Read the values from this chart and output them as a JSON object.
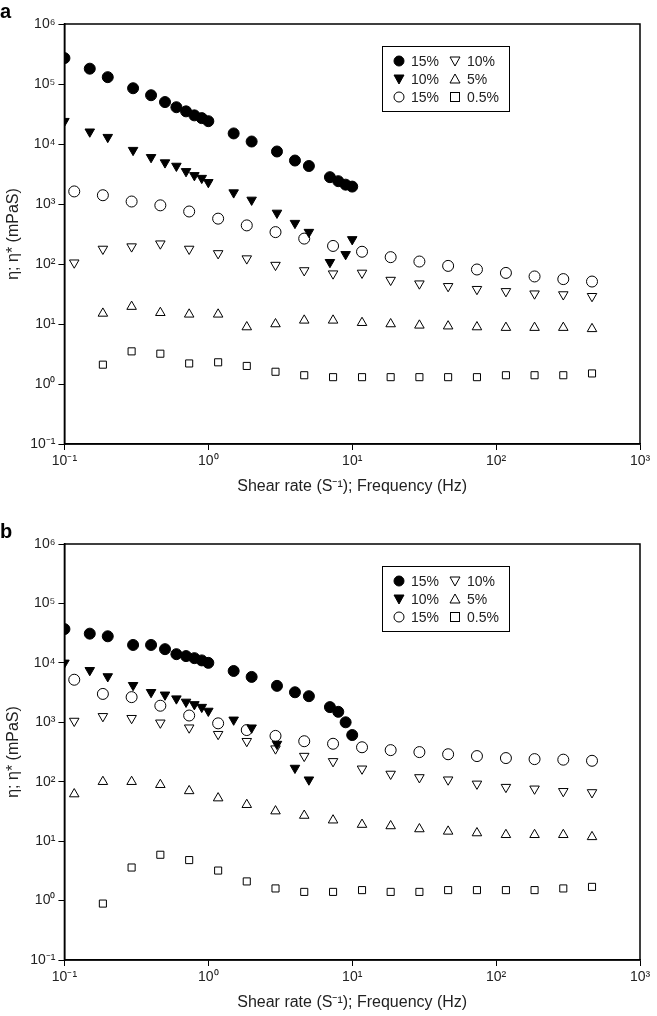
{
  "chart_data": [
    {
      "type": "scatter",
      "title": "a",
      "xlabel": "Shear rate (S⁻¹); Frequency (Hz)",
      "ylabel": "η; η* (mPaS)",
      "log": "xy",
      "grid": false,
      "legend": "top right",
      "xlim": [
        0.1,
        1000
      ],
      "xticks": [
        {
          "value": 0.1,
          "label": "10⁻¹"
        },
        {
          "value": 1,
          "label": "10⁰"
        },
        {
          "value": 10,
          "label": "10¹"
        },
        {
          "value": 100,
          "label": "10²"
        },
        {
          "value": 1000,
          "label": "10³"
        }
      ],
      "ylim": [
        0.1,
        1000000
      ],
      "yticks": [
        {
          "value": 0.1,
          "label": "10⁻¹"
        },
        {
          "value": 1,
          "label": "10⁰"
        },
        {
          "value": 10,
          "label": "10¹"
        },
        {
          "value": 100,
          "label": "10²"
        },
        {
          "value": 1000,
          "label": "10³"
        },
        {
          "value": 10000,
          "label": "10⁴"
        },
        {
          "value": 100000,
          "label": "10⁵"
        },
        {
          "value": 1000000,
          "label": "10⁶"
        }
      ],
      "series": [
        {
          "name": "15%",
          "color": "#000000",
          "marker": "circle",
          "x": [
            0.1,
            0.15,
            0.2,
            0.3,
            0.4,
            0.5,
            0.6,
            0.7,
            0.8,
            0.9,
            1,
            1.5,
            2,
            3,
            4,
            5,
            7,
            8,
            9,
            10
          ],
          "values": [
            270000,
            180000,
            130000,
            85000,
            65000,
            50000,
            41000,
            35000,
            30000,
            27000,
            24000,
            15000,
            11000,
            7500,
            5300,
            4300,
            2800,
            2400,
            2100,
            1950
          ]
        },
        {
          "name": "10%",
          "color": "#000000",
          "marker": "triangle-down",
          "x": [
            0.1,
            0.15,
            0.2,
            0.3,
            0.4,
            0.5,
            0.6,
            0.7,
            0.8,
            0.9,
            1,
            1.5,
            2,
            3,
            4,
            5,
            7,
            9,
            10
          ],
          "values": [
            24000,
            16000,
            13000,
            7900,
            6000,
            4900,
            4300,
            3500,
            3000,
            2700,
            2300,
            1550,
            1170,
            710,
            480,
            340,
            107,
            145,
            257
          ]
        },
        {
          "name": "15%",
          "color": "#000000",
          "marker": "circle-open",
          "x": [
            0.117,
            0.185,
            0.293,
            0.464,
            0.736,
            1.17,
            1.85,
            2.93,
            4.64,
            7.36,
            11.7,
            18.5,
            29.3,
            46.4,
            73.6,
            117,
            185,
            293,
            464
          ],
          "values": [
            1620,
            1400,
            1100,
            950,
            750,
            570,
            440,
            340,
            265,
            200,
            160,
            130,
            110,
            93,
            81,
            71,
            62,
            56,
            51
          ]
        },
        {
          "name": "10%",
          "color": "#000000",
          "marker": "triangle-down-open",
          "x": [
            0.117,
            0.185,
            0.293,
            0.464,
            0.736,
            1.17,
            1.85,
            2.93,
            4.64,
            7.36,
            11.7,
            18.5,
            29.3,
            46.4,
            73.6,
            117,
            185,
            293,
            464
          ],
          "values": [
            105,
            178,
            195,
            218,
            178,
            150,
            123,
            96,
            78,
            69,
            71,
            54,
            47,
            42.5,
            38,
            35,
            32,
            31,
            29
          ]
        },
        {
          "name": "5%",
          "color": "#000000",
          "marker": "triangle-open",
          "x": [
            0.185,
            0.293,
            0.464,
            0.736,
            1.17,
            1.85,
            2.93,
            4.64,
            7.36,
            11.7,
            18.5,
            29.3,
            46.4,
            73.6,
            117,
            185,
            293,
            464
          ],
          "values": [
            15,
            19.5,
            15.4,
            14.5,
            14.5,
            8.9,
            10,
            11.5,
            11.5,
            10.5,
            10,
            9.5,
            9.2,
            8.9,
            8.7,
            8.7,
            8.7,
            8.3
          ]
        },
        {
          "name": "0.5%",
          "color": "#000000",
          "marker": "square-open",
          "x": [
            0.185,
            0.293,
            0.464,
            0.736,
            1.17,
            1.85,
            2.93,
            4.64,
            7.36,
            11.7,
            18.5,
            29.3,
            46.4,
            73.6,
            117,
            185,
            293,
            464
          ],
          "values": [
            2.1,
            3.5,
            3.2,
            2.2,
            2.3,
            2.0,
            1.6,
            1.4,
            1.3,
            1.3,
            1.3,
            1.3,
            1.3,
            1.3,
            1.4,
            1.4,
            1.4,
            1.5
          ]
        }
      ]
    },
    {
      "type": "scatter",
      "title": "b",
      "xlabel": "Shear rate (S⁻¹); Frequency (Hz)",
      "ylabel": "η; η* (mPaS)",
      "log": "xy",
      "grid": false,
      "legend": "top right",
      "xlim": [
        0.1,
        1000
      ],
      "xticks": [
        {
          "value": 0.1,
          "label": "10⁻¹"
        },
        {
          "value": 1,
          "label": "10⁰"
        },
        {
          "value": 10,
          "label": "10¹"
        },
        {
          "value": 100,
          "label": "10²"
        },
        {
          "value": 1000,
          "label": "10³"
        }
      ],
      "ylim": [
        0.1,
        1000000
      ],
      "yticks": [
        {
          "value": 0.1,
          "label": "10⁻¹"
        },
        {
          "value": 1,
          "label": "10⁰"
        },
        {
          "value": 10,
          "label": "10¹"
        },
        {
          "value": 100,
          "label": "10²"
        },
        {
          "value": 1000,
          "label": "10³"
        },
        {
          "value": 10000,
          "label": "10⁴"
        },
        {
          "value": 100000,
          "label": "10⁵"
        },
        {
          "value": 1000000,
          "label": "10⁶"
        }
      ],
      "series": [
        {
          "name": "15%",
          "color": "#000000",
          "marker": "circle",
          "x": [
            0.1,
            0.15,
            0.2,
            0.3,
            0.4,
            0.5,
            0.6,
            0.7,
            0.8,
            0.9,
            1,
            1.5,
            2,
            3,
            4,
            5,
            7,
            8,
            9,
            10
          ],
          "values": [
            37000,
            31000,
            28000,
            20000,
            20000,
            17000,
            14000,
            13000,
            12000,
            11000,
            10000,
            7300,
            5800,
            4100,
            3200,
            2750,
            1800,
            1500,
            1000,
            610
          ]
        },
        {
          "name": "10%",
          "color": "#000000",
          "marker": "triangle-down",
          "x": [
            0.1,
            0.15,
            0.2,
            0.3,
            0.4,
            0.5,
            0.6,
            0.7,
            0.8,
            0.9,
            1,
            1.5,
            2,
            3,
            4,
            5
          ],
          "values": [
            10000,
            7500,
            5900,
            4200,
            3200,
            2900,
            2500,
            2200,
            2000,
            1800,
            1550,
            1100,
            810,
            430,
            170,
            108
          ]
        },
        {
          "name": "15%",
          "color": "#000000",
          "marker": "circle-open",
          "x": [
            0.117,
            0.185,
            0.293,
            0.464,
            0.736,
            1.17,
            1.85,
            2.93,
            4.64,
            7.36,
            11.7,
            18.5,
            29.3,
            46.4,
            73.6,
            117,
            185,
            293,
            464
          ],
          "values": [
            5200,
            3000,
            2650,
            1900,
            1300,
            960,
            740,
            590,
            480,
            435,
            380,
            340,
            315,
            290,
            270,
            250,
            240,
            235,
            225
          ]
        },
        {
          "name": "10%",
          "color": "#000000",
          "marker": "triangle-down-open",
          "x": [
            0.117,
            0.185,
            0.293,
            0.464,
            0.736,
            1.17,
            1.85,
            2.93,
            4.64,
            7.36,
            11.7,
            18.5,
            29.3,
            46.4,
            73.6,
            117,
            185,
            293,
            464
          ],
          "values": [
            1050,
            1260,
            1170,
            980,
            810,
            630,
            480,
            360,
            270,
            220,
            165,
            135,
            118,
            108,
            92,
            81,
            76,
            69,
            66
          ]
        },
        {
          "name": "5%",
          "color": "#000000",
          "marker": "triangle-open",
          "x": [
            0.117,
            0.185,
            0.293,
            0.464,
            0.736,
            1.17,
            1.85,
            2.93,
            4.64,
            7.36,
            11.7,
            18.5,
            29.3,
            46.4,
            73.6,
            117,
            185,
            293,
            464
          ],
          "values": [
            62,
            100,
            100,
            89,
            70,
            53,
            41,
            32,
            27,
            22.5,
            19,
            18,
            16,
            14.6,
            13.7,
            12.8,
            12.8,
            12.8,
            11.8
          ]
        },
        {
          "name": "0.5%",
          "color": "#000000",
          "marker": "square-open",
          "x": [
            0.185,
            0.293,
            0.464,
            0.736,
            1.17,
            1.85,
            2.93,
            4.64,
            7.36,
            11.7,
            18.5,
            29.3,
            46.4,
            73.6,
            117,
            185,
            293,
            464
          ],
          "values": [
            0.89,
            3.6,
            5.9,
            4.8,
            3.2,
            2.1,
            1.6,
            1.4,
            1.4,
            1.5,
            1.4,
            1.4,
            1.5,
            1.5,
            1.5,
            1.5,
            1.6,
            1.7
          ]
        }
      ]
    }
  ]
}
